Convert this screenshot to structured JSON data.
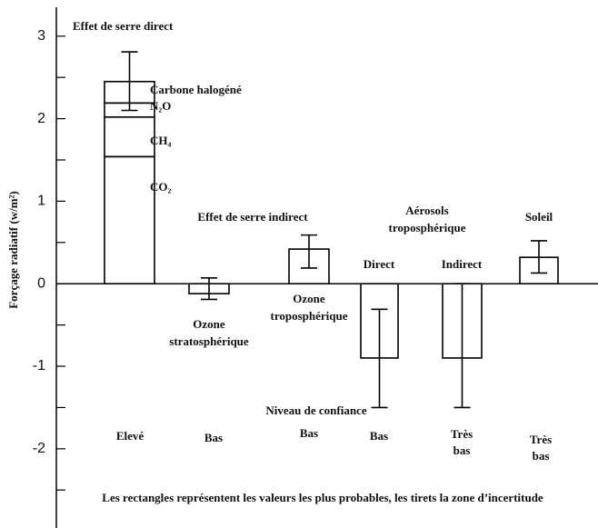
{
  "chart_data": {
    "type": "bar",
    "y_label": "Forçage radiatif (w/m²)",
    "color": "#000000",
    "ylim": [
      -2.96,
      3.35
    ],
    "yticks": [
      -2,
      -1,
      0,
      1,
      2,
      3
    ],
    "minor_yticks": [
      -2.5,
      -1.5,
      -0.5,
      0.5,
      1.5,
      2.5
    ],
    "categories": [
      "Effet de serre direct",
      [
        "Ozone",
        "stratosphérique"
      ],
      [
        "Ozone",
        "troposphérique"
      ],
      "Direct",
      "Indirect",
      "Soleil"
    ],
    "segments": [
      {
        "name": "CO₂",
        "value": 1.54
      },
      {
        "name": "CH₄",
        "value": 0.48
      },
      {
        "name": "N₂O",
        "value": 0.17
      },
      {
        "name": "Carbone halogéné",
        "value": 0.26
      }
    ],
    "values": [
      null,
      -0.12,
      0.42,
      -0.9,
      -0.9,
      0.32
    ],
    "error_high": [
      2.81,
      0.07,
      0.59,
      -0.31,
      0,
      0.52
    ],
    "error_low": [
      2.1,
      -0.19,
      0.19,
      -1.5,
      -1.5,
      0.13
    ],
    "group_labels": [
      "Effet de serre indirect",
      [
        "Aérosols",
        "troposphérique"
      ]
    ],
    "confidence_title": "Niveau de confiance",
    "confidence": [
      "Elevé",
      "Bas",
      "Bas",
      "Bas",
      [
        "Très",
        "bas"
      ],
      [
        "Très",
        "bas"
      ]
    ],
    "footnote": "Les rectangles représentent les valeurs les plus probables, les tirets la zone d’incertitude"
  }
}
